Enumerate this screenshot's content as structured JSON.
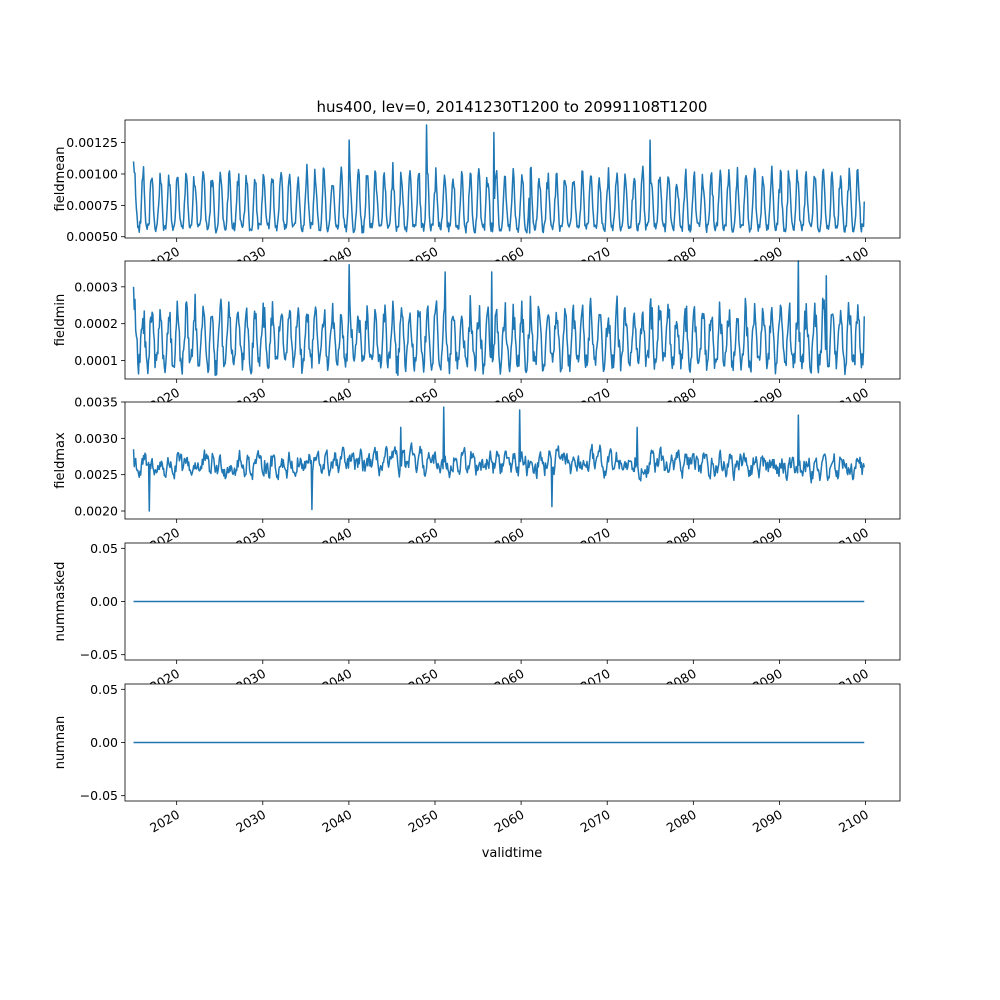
{
  "title": "hus400, lev=0, 20141230T1200 to 20991108T1200",
  "xlabel": "validtime",
  "line_color": "#1f77b4",
  "x_ticks": [
    "2020",
    "2030",
    "2040",
    "2050",
    "2060",
    "2070",
    "2080",
    "2090",
    "2100"
  ],
  "chart_data": [
    {
      "type": "line",
      "ylabel": "fieldmean",
      "xlim": [
        2014.0,
        2104.0
      ],
      "ylim": [
        0.00049,
        0.00143
      ],
      "y_ticks": [
        "0.00050",
        "0.00075",
        "0.00100",
        "0.00125"
      ],
      "x_range": [
        2014.99,
        2099.85
      ],
      "mode": "seasonal",
      "base": 0.00057,
      "amplitude": 0.00052,
      "sharpness": 1.8,
      "noise": 4e-05,
      "peaks": [
        [
          2049.0,
          0.00139
        ],
        [
          2056.8,
          0.00133
        ],
        [
          2040.0,
          0.00127
        ],
        [
          2075.0,
          0.00127
        ]
      ],
      "min_points": [
        [
          2041.5,
          0.00053
        ],
        [
          2061.0,
          0.00053
        ]
      ],
      "end_values": [
        0.0011,
        0.00078
      ]
    },
    {
      "type": "line",
      "ylabel": "fieldmin",
      "xlim": [
        2014.0,
        2104.0
      ],
      "ylim": [
        5e-05,
        0.00037
      ],
      "y_ticks": [
        "0.0001",
        "0.0002",
        "0.0003"
      ],
      "x_range": [
        2014.99,
        2099.85
      ],
      "mode": "seasonal",
      "base": 9e-05,
      "amplitude": 0.00017,
      "sharpness": 1.2,
      "noise": 3e-05,
      "peaks": [
        [
          2040.0,
          0.00036
        ],
        [
          2051.2,
          0.00034
        ],
        [
          2056.6,
          0.00034
        ],
        [
          2092.2,
          0.00037
        ],
        [
          2095.4,
          0.00033
        ]
      ],
      "min_points": [
        [
          2024.5,
          6e-05
        ],
        [
          2045.7,
          6e-05
        ]
      ],
      "end_values": [
        0.0003,
        0.00022
      ]
    },
    {
      "type": "line",
      "ylabel": "fieldmax",
      "xlim": [
        2014.0,
        2104.0
      ],
      "ylim": [
        0.00189,
        0.0035
      ],
      "y_ticks": [
        "0.0020",
        "0.0025",
        "0.0030",
        "0.0035"
      ],
      "x_range": [
        2014.99,
        2099.85
      ],
      "mode": "noisy",
      "base": 0.0026,
      "amplitude": 0.00018,
      "sharpness": 1.0,
      "noise": 0.00012,
      "peaks": [
        [
          2051.0,
          0.00343
        ],
        [
          2059.8,
          0.00339
        ],
        [
          2092.2,
          0.00332
        ],
        [
          2046.0,
          0.00315
        ],
        [
          2073.5,
          0.00315
        ]
      ],
      "min_points": [
        [
          2016.8,
          0.002
        ],
        [
          2035.7,
          0.00202
        ],
        [
          2063.6,
          0.00206
        ]
      ],
      "end_values": [
        0.00285,
        0.0026
      ]
    },
    {
      "type": "line",
      "ylabel": "nummasked",
      "xlim": [
        2014.0,
        2104.0
      ],
      "ylim": [
        -0.055,
        0.055
      ],
      "y_ticks": [
        "−0.05",
        "0.00",
        "0.05"
      ],
      "x_range": [
        2014.99,
        2099.85
      ],
      "mode": "constant",
      "value": 0.0
    },
    {
      "type": "line",
      "ylabel": "numnan",
      "xlim": [
        2014.0,
        2104.0
      ],
      "ylim": [
        -0.055,
        0.055
      ],
      "y_ticks": [
        "−0.05",
        "0.00",
        "0.05"
      ],
      "x_range": [
        2014.99,
        2099.85
      ],
      "mode": "constant",
      "value": 0.0
    }
  ]
}
